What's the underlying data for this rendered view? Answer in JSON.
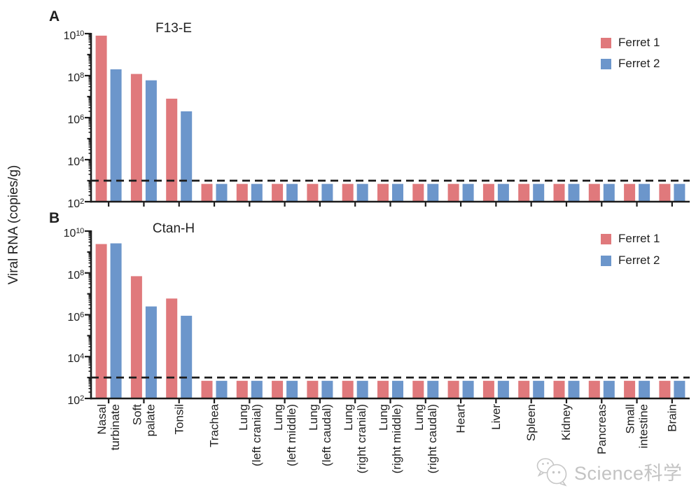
{
  "ylabel": "Viral RNA (copies/g)",
  "colors": {
    "ferret1": "#E0797C",
    "ferret2": "#6C96CB",
    "axis": "#1c1c1c",
    "detection_line": "#1c1c1c",
    "watermark": "#c3c3c3"
  },
  "legend": {
    "items": [
      {
        "label": "Ferret 1",
        "color_key": "ferret1"
      },
      {
        "label": "Ferret 2",
        "color_key": "ferret2"
      }
    ]
  },
  "watermark": {
    "text": "Science科学",
    "icon": "chat-bubble-faces-icon"
  },
  "categories": [
    [
      "Nasal",
      "turbinate"
    ],
    [
      "Soft",
      "palate"
    ],
    [
      "Tonsil"
    ],
    [
      "Trachea"
    ],
    [
      "Lung",
      "(left cranial)"
    ],
    [
      "Lung",
      "(left middle)"
    ],
    [
      "Lung",
      "(left caudal)"
    ],
    [
      "Lung",
      "(right cranial)"
    ],
    [
      "Lung",
      "(right middle)"
    ],
    [
      "Lung",
      "(right caudal)"
    ],
    [
      "Heart"
    ],
    [
      "Liver"
    ],
    [
      "Spleen"
    ],
    [
      "Kidney"
    ],
    [
      "Pancreas"
    ],
    [
      "Small",
      "intestine"
    ],
    [
      "Brain"
    ]
  ],
  "chart_data": [
    {
      "type": "bar",
      "panel": "A",
      "title": "F13-E",
      "y_scale": "log10",
      "ylim_exponents": [
        2,
        10
      ],
      "y_tick_exponents": [
        2,
        4,
        6,
        8,
        10
      ],
      "detection_line": 1000,
      "below_detection_value": 700,
      "categories": [
        "Nasal turbinate",
        "Soft palate",
        "Tonsil",
        "Trachea",
        "Lung (left cranial)",
        "Lung (left middle)",
        "Lung (left caudal)",
        "Lung (right cranial)",
        "Lung (right middle)",
        "Lung (right caudal)",
        "Heart",
        "Liver",
        "Spleen",
        "Kidney",
        "Pancreas",
        "Small intestine",
        "Brain"
      ],
      "series": [
        {
          "name": "Ferret 1",
          "color_key": "ferret1",
          "values": [
            8000000000.0,
            120000000.0,
            8000000.0,
            700,
            700,
            700,
            700,
            700,
            700,
            700,
            700,
            700,
            700,
            700,
            700,
            700,
            700
          ]
        },
        {
          "name": "Ferret 2",
          "color_key": "ferret2",
          "values": [
            200000000.0,
            60000000.0,
            2000000.0,
            700,
            700,
            700,
            700,
            700,
            700,
            700,
            700,
            700,
            700,
            700,
            700,
            700,
            700
          ]
        }
      ]
    },
    {
      "type": "bar",
      "panel": "B",
      "title": "Ctan-H",
      "y_scale": "log10",
      "ylim_exponents": [
        2,
        10
      ],
      "y_tick_exponents": [
        2,
        4,
        6,
        8,
        10
      ],
      "detection_line": 1000,
      "below_detection_value": 700,
      "categories": [
        "Nasal turbinate",
        "Soft palate",
        "Tonsil",
        "Trachea",
        "Lung (left cranial)",
        "Lung (left middle)",
        "Lung (left caudal)",
        "Lung (right cranial)",
        "Lung (right middle)",
        "Lung (right caudal)",
        "Heart",
        "Liver",
        "Spleen",
        "Kidney",
        "Pancreas",
        "Small intestine",
        "Brain"
      ],
      "series": [
        {
          "name": "Ferret 1",
          "color_key": "ferret1",
          "values": [
            2400000000.0,
            70000000.0,
            6000000.0,
            700,
            700,
            700,
            700,
            700,
            700,
            700,
            700,
            700,
            700,
            700,
            700,
            700,
            700
          ]
        },
        {
          "name": "Ferret 2",
          "color_key": "ferret2",
          "values": [
            2600000000.0,
            2500000.0,
            900000.0,
            700,
            700,
            700,
            700,
            700,
            700,
            700,
            700,
            700,
            700,
            700,
            700,
            700,
            700
          ]
        }
      ]
    }
  ]
}
